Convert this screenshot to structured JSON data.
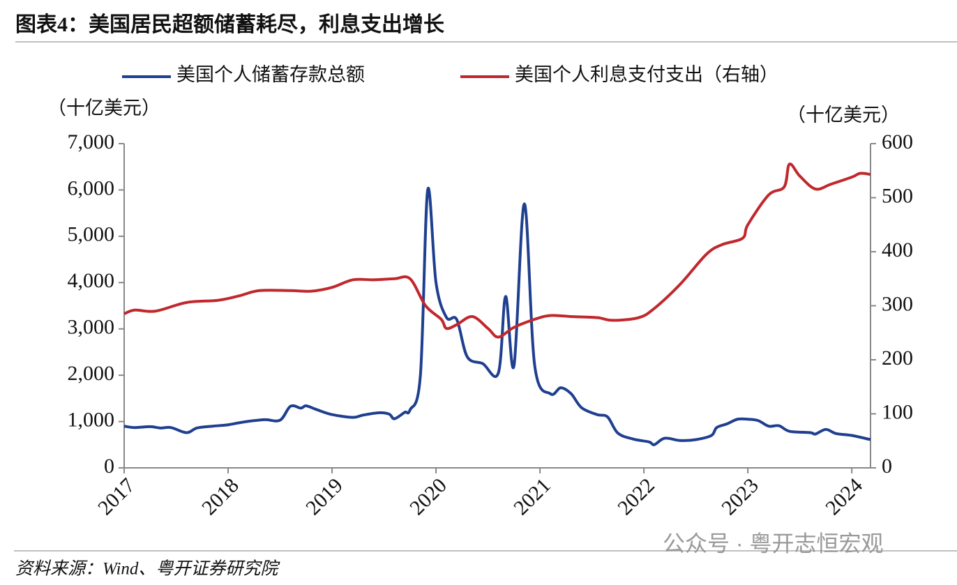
{
  "chart_data": {
    "type": "line",
    "title": "图表4：美国居民超额储蓄耗尽，利息支出增长",
    "y_label": "（十亿美元）",
    "y2_label": "（十亿美元）",
    "source": "资料来源：Wind、粤开证券研究院",
    "watermark": "公众号 · 粤开志恒宏观",
    "xlim": [
      2017,
      2024.18
    ],
    "xticks": [
      2017,
      2018,
      2019,
      2020,
      2021,
      2022,
      2023,
      2024
    ],
    "ylim": [
      0,
      7000
    ],
    "yticks": [
      0,
      {
        "value": 1000,
        "label": "1,000"
      },
      {
        "value": 2000,
        "label": "2,000"
      },
      {
        "value": 3000,
        "label": "3,000"
      },
      {
        "value": 4000,
        "label": "4,000"
      },
      {
        "value": 5000,
        "label": "5,000"
      },
      {
        "value": 6000,
        "label": "6,000"
      },
      {
        "value": 7000,
        "label": "7,000"
      }
    ],
    "y2lim": [
      0,
      600
    ],
    "y2ticks": [
      0,
      100,
      200,
      300,
      400,
      500,
      600
    ],
    "series": [
      {
        "name": "美国个人储蓄存款总额",
        "color": "#1f3f8f",
        "x": [
          2017.0,
          2017.1,
          2017.25,
          2017.35,
          2017.45,
          2017.6,
          2017.7,
          2017.85,
          2018.0,
          2018.15,
          2018.35,
          2018.5,
          2018.6,
          2018.7,
          2018.75,
          2018.85,
          2019.0,
          2019.2,
          2019.3,
          2019.45,
          2019.55,
          2019.6,
          2019.7,
          2019.75,
          2019.85,
          2019.92,
          2020.0,
          2020.1,
          2020.2,
          2020.3,
          2020.45,
          2020.6,
          2020.67,
          2020.75,
          2020.85,
          2020.95,
          2021.1,
          2021.2,
          2021.3,
          2021.4,
          2021.55,
          2021.65,
          2021.75,
          2021.9,
          2022.05,
          2022.1,
          2022.2,
          2022.35,
          2022.5,
          2022.65,
          2022.7,
          2022.8,
          2022.9,
          2023.0,
          2023.1,
          2023.2,
          2023.3,
          2023.4,
          2023.6,
          2023.65,
          2023.75,
          2023.85,
          2024.0,
          2024.18
        ],
        "values": [
          900,
          870,
          890,
          860,
          870,
          760,
          860,
          900,
          930,
          990,
          1040,
          1030,
          1330,
          1290,
          1340,
          1260,
          1150,
          1090,
          1140,
          1190,
          1160,
          1060,
          1200,
          1250,
          2000,
          6000,
          4000,
          3250,
          3200,
          2400,
          2250,
          2050,
          3700,
          2200,
          5700,
          2200,
          1600,
          1730,
          1600,
          1300,
          1150,
          1100,
          750,
          620,
          560,
          500,
          640,
          590,
          610,
          700,
          870,
          950,
          1050,
          1050,
          1020,
          900,
          910,
          790,
          760,
          730,
          830,
          740,
          700,
          610
        ]
      },
      {
        "name": "美国个人利息支付支出（右轴）",
        "color": "#c0282d",
        "axis": "y2",
        "x": [
          2017.0,
          2017.1,
          2017.3,
          2017.6,
          2017.9,
          2018.1,
          2018.3,
          2018.6,
          2018.8,
          2019.0,
          2019.2,
          2019.4,
          2019.6,
          2019.75,
          2019.9,
          2020.05,
          2020.1,
          2020.2,
          2020.35,
          2020.5,
          2020.6,
          2020.75,
          2020.95,
          2021.1,
          2021.3,
          2021.55,
          2021.7,
          2021.95,
          2022.1,
          2022.35,
          2022.6,
          2022.75,
          2022.95,
          2023.0,
          2023.2,
          2023.35,
          2023.4,
          2023.5,
          2023.65,
          2023.8,
          2024.0,
          2024.08,
          2024.18
        ],
        "values": [
          285,
          292,
          290,
          306,
          310,
          318,
          328,
          328,
          327,
          334,
          348,
          348,
          350,
          350,
          300,
          275,
          258,
          265,
          280,
          258,
          242,
          260,
          275,
          282,
          280,
          278,
          273,
          278,
          295,
          340,
          395,
          413,
          425,
          450,
          505,
          520,
          562,
          540,
          516,
          525,
          538,
          545,
          543
        ]
      }
    ]
  }
}
